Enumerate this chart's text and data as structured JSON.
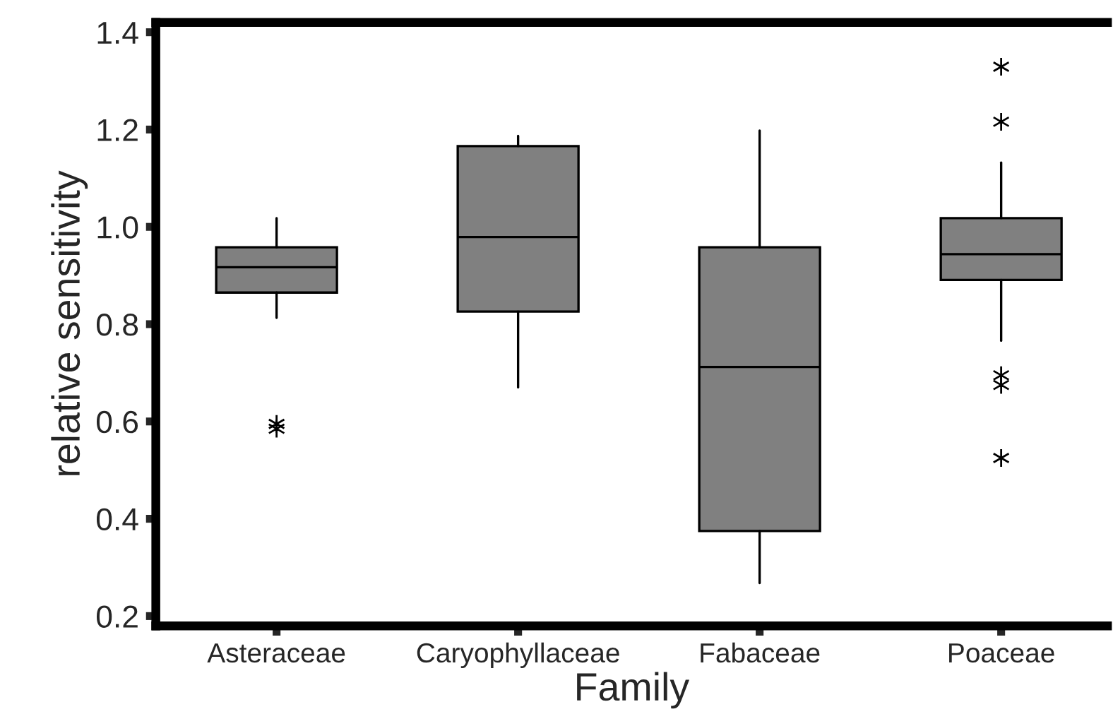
{
  "chart_data": {
    "type": "box",
    "xlabel": "Family",
    "ylabel": "relative sensitivity",
    "categories": [
      "Asteraceae",
      "Caryophyllaceae",
      "Fabaceae",
      "Poaceae"
    ],
    "color": "#808080",
    "boxes": [
      {
        "low": 0.813,
        "q1": 0.865,
        "median": 0.917,
        "q3": 0.958,
        "high": 1.018,
        "outliers": [
          0.595,
          0.585
        ]
      },
      {
        "low": 0.67,
        "q1": 0.826,
        "median": 0.979,
        "q3": 1.166,
        "high": 1.187
      },
      {
        "low": 0.268,
        "q1": 0.375,
        "median": 0.712,
        "q3": 0.958,
        "high": 1.198
      },
      {
        "low": 0.766,
        "q1": 0.891,
        "median": 0.944,
        "q3": 1.018,
        "high": 1.132,
        "outliers": [
          1.329,
          1.216,
          0.695,
          0.675,
          0.525
        ]
      }
    ],
    "ylim": [
      0.18,
      1.42
    ],
    "yticks": [
      {
        "value": 0.2,
        "label": "0.2"
      },
      {
        "value": 0.4,
        "label": "0.4"
      },
      {
        "value": 0.6,
        "label": "0.6"
      },
      {
        "value": 0.8,
        "label": "0.8"
      },
      {
        "value": 1.0,
        "label": "1.0"
      },
      {
        "value": 1.2,
        "label": "1.2"
      },
      {
        "value": 1.4,
        "label": "1.4"
      }
    ],
    "grid": false,
    "legend": false
  }
}
